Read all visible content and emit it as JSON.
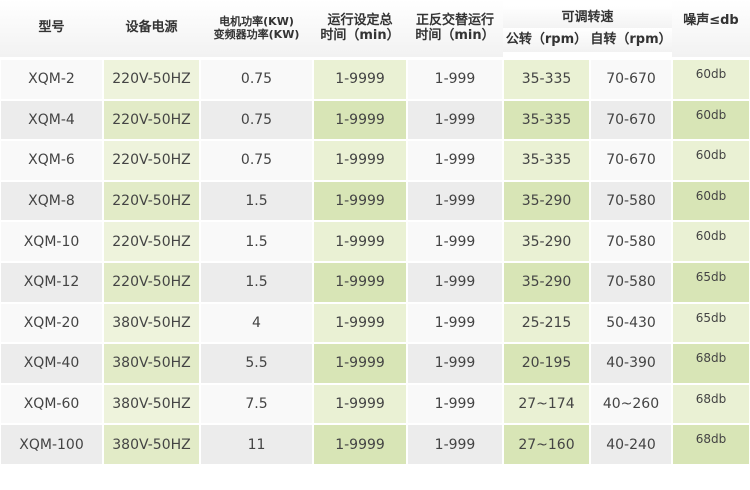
{
  "header": {
    "model": "型号",
    "power_supply": "设备电源",
    "motor_power": [
      "电机功率(KW)",
      "变频器功率(KW)"
    ],
    "run_time": [
      "运行设定总",
      "时间（min）"
    ],
    "alt_time": [
      "正反交替运行",
      "时间（min）"
    ],
    "speed": "可调转速",
    "revolution": "公转（rpm）",
    "rotation": "自转（rpm）",
    "noise": "噪声≤db"
  },
  "table": {
    "rows": [
      [
        "XQM-2",
        "220V-50HZ",
        "0.75",
        "1-9999",
        "1-999",
        "35-335",
        "70-670",
        "60db"
      ],
      [
        "XQM-4",
        "220V-50HZ",
        "0.75",
        "1-9999",
        "1-999",
        "35-335",
        "70-670",
        "60db"
      ],
      [
        "XQM-6",
        "220V-50HZ",
        "0.75",
        "1-9999",
        "1-999",
        "35-335",
        "70-670",
        "60db"
      ],
      [
        "XQM-8",
        "220V-50HZ",
        "1.5",
        "1-9999",
        "1-999",
        "35-290",
        "70-580",
        "60db"
      ],
      [
        "XQM-10",
        "220V-50HZ",
        "1.5",
        "1-9999",
        "1-999",
        "35-290",
        "70-580",
        "60db"
      ],
      [
        "XQM-12",
        "220V-50HZ",
        "1.5",
        "1-9999",
        "1-999",
        "35-290",
        "70-580",
        "65db"
      ],
      [
        "XQM-20",
        "380V-50HZ",
        "4",
        "1-9999",
        "1-999",
        "25-215",
        "50-430",
        "65db"
      ],
      [
        "XQM-40",
        "380V-50HZ",
        "5.5",
        "1-9999",
        "1-999",
        "20-195",
        "40-390",
        "68db"
      ],
      [
        "XQM-60",
        "380V-50HZ",
        "7.5",
        "1-9999",
        "1-999",
        "27~174",
        "40~260",
        "68db"
      ],
      [
        "XQM-100",
        "380V-50HZ",
        "11",
        "1-9999",
        "1-999",
        "27~160",
        "40-240",
        "68db"
      ]
    ]
  }
}
